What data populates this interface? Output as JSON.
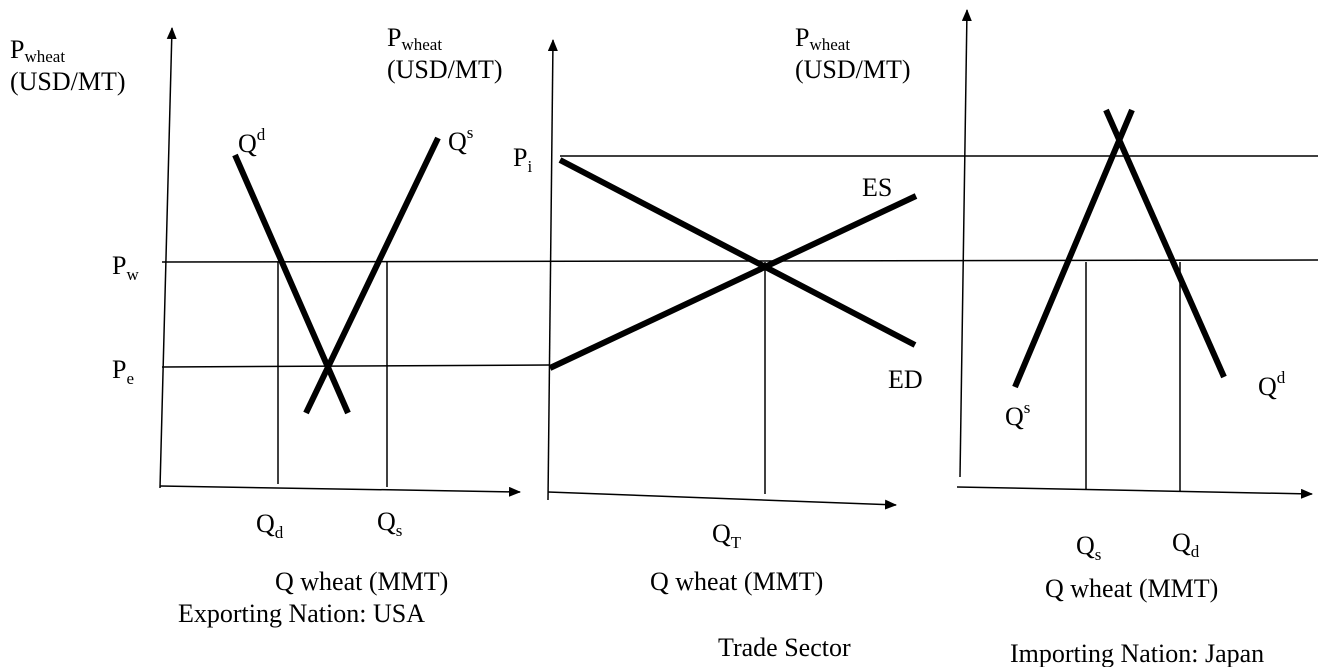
{
  "panels": [
    {
      "y_axis_label": {
        "symbol": "P",
        "sub": "wheat",
        "unit": "(USD/MT)"
      },
      "price_labels": [
        {
          "symbol": "P",
          "sub": "w"
        },
        {
          "symbol": "P",
          "sub": "e"
        }
      ],
      "curve_labels": [
        {
          "symbol": "Q",
          "sup": "d"
        },
        {
          "symbol": "Q",
          "sup": "s"
        }
      ],
      "quantity_labels": [
        {
          "symbol": "Q",
          "sub": "d"
        },
        {
          "symbol": "Q",
          "sub": "s"
        }
      ],
      "x_axis_label": "Q wheat (MMT)",
      "title": "Exporting Nation: USA"
    },
    {
      "y_axis_label": {
        "symbol": "P",
        "sub": "wheat",
        "unit": "(USD/MT)"
      },
      "price_labels": [
        {
          "symbol": "P",
          "sub": "i"
        }
      ],
      "curve_labels": [
        "ES",
        "ED"
      ],
      "quantity_labels": [
        {
          "symbol": "Q",
          "sub": "T"
        }
      ],
      "x_axis_label": "Q wheat (MMT)",
      "title": "Trade Sector"
    },
    {
      "y_axis_label": {
        "symbol": "P",
        "sub": "wheat",
        "unit": "(USD/MT)"
      },
      "curve_labels": [
        {
          "symbol": "Q",
          "sup": "s"
        },
        {
          "symbol": "Q",
          "sup": "d"
        }
      ],
      "quantity_labels": [
        {
          "symbol": "Q",
          "sub": "s"
        },
        {
          "symbol": "Q",
          "sub": "d"
        }
      ],
      "x_axis_label": "Q wheat (MMT)",
      "title": "Importing Nation: Japan"
    }
  ]
}
